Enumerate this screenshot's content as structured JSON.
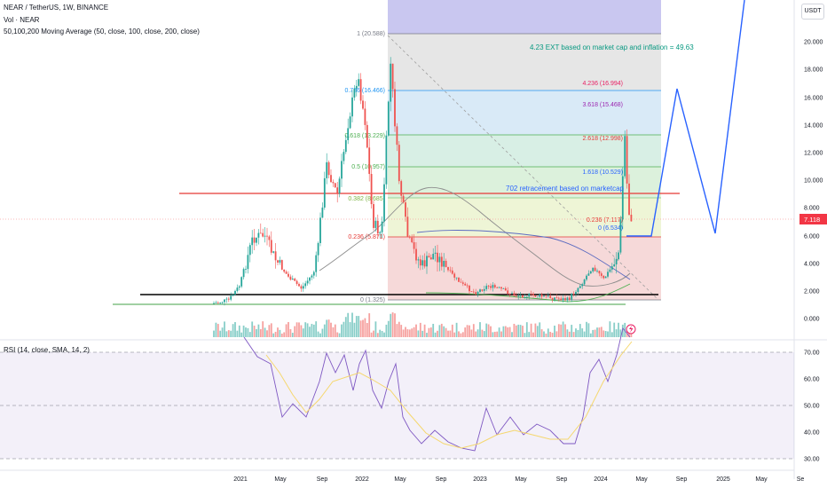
{
  "header": {
    "symbol_line": "NEAR / TetherUS, 1W, BINANCE",
    "vol_line": "Vol · NEAR",
    "ma_line": "50,100,200 Moving Average (50, close, 100, close, 200, close)",
    "rsi_line": "RSI (14, close, SMA, 14, 2)",
    "currency_button": "USDT"
  },
  "colors": {
    "up": "#26a69a",
    "down": "#ef5350",
    "price_tag": "#f23645",
    "projection": "#2962ff",
    "rsi_line": "#7e57c2",
    "rsi_ma": "#f5d76e",
    "ma": "#888888"
  },
  "chart_data": {
    "type": "candlestick",
    "price_axis_ticks": [
      "20.000",
      "18.000",
      "16.000",
      "14.000",
      "12.000",
      "10.000",
      "8.000",
      "6.000",
      "4.000",
      "2.000",
      "0.000"
    ],
    "rsi_axis_ticks": [
      "70.00",
      "60.00",
      "50.00",
      "40.00",
      "30.00"
    ],
    "time_ticks": [
      "2021",
      "May",
      "Sep",
      "2022",
      "May",
      "Sep",
      "2023",
      "May",
      "Sep",
      "2024",
      "May",
      "Sep",
      "2025",
      "May",
      "Se"
    ],
    "last_price_label": "7.118",
    "rsi_band": [
      30,
      70
    ],
    "fib_retracement": [
      {
        "label": "1 (20.588)",
        "level": 20.588
      },
      {
        "label": "0.786 (16.466)",
        "level": 16.466
      },
      {
        "label": "0.618 (13.229)",
        "level": 13.229
      },
      {
        "label": "0.5 (10.957)",
        "level": 10.957
      },
      {
        "label": "0.382 (8.685)",
        "level": 8.685
      },
      {
        "label": "0.236 (5.871)",
        "level": 5.871
      },
      {
        "label": "0 (1.325)",
        "level": 1.325
      }
    ],
    "fib_extension": [
      {
        "label": "4.236 (16.994)",
        "level": 16.994
      },
      {
        "label": "3.618 (15.468)",
        "level": 15.468
      },
      {
        "label": "2.618 (12.998)",
        "level": 12.998
      },
      {
        "label": "1.618 (10.529)",
        "level": 10.529
      },
      {
        "label": "0.236 (7.117)",
        "level": 7.117
      },
      {
        "label": "0 (6.534)",
        "level": 6.534
      }
    ],
    "horizontal_lines": [
      {
        "level": 9.0,
        "color": "#e53935"
      },
      {
        "level": 1.7,
        "color": "#000000"
      },
      {
        "level": 1.0,
        "color": "#43a047"
      }
    ],
    "annotations": [
      {
        "text": "4.23 EXT based on market cap and inflation = 49.63",
        "color": "#089981"
      },
      {
        "text": "702 retracement based on marketcap",
        "color": "#2962ff"
      }
    ]
  }
}
